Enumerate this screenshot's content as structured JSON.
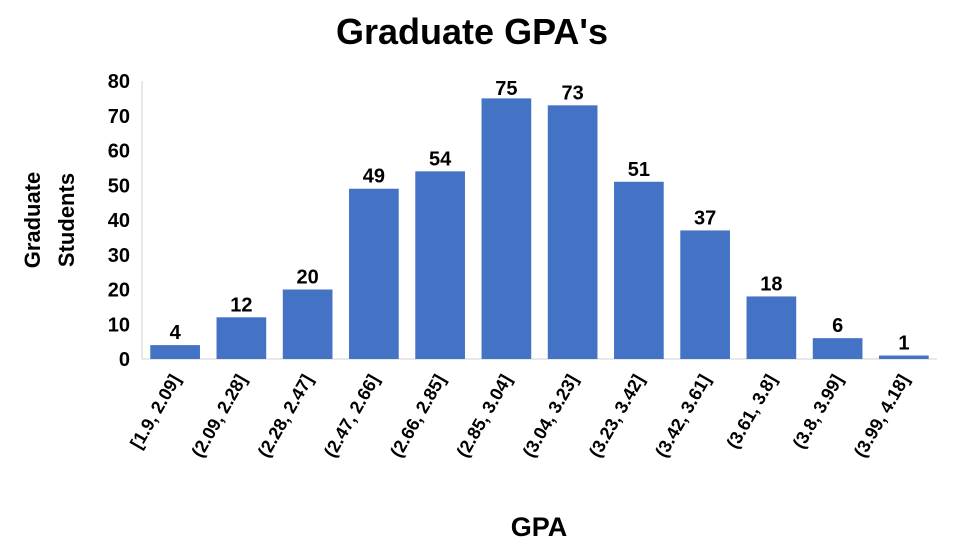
{
  "chart_data": {
    "type": "bar",
    "title": "Graduate GPA's",
    "xlabel": "GPA",
    "ylabel_lines": [
      "Graduate",
      "Students"
    ],
    "categories": [
      "[1.9, 2.09]",
      "(2.09, 2.28]",
      "(2.28, 2.47]",
      "(2.47, 2.66]",
      "(2.66, 2.85]",
      "(2.85, 3.04]",
      "(3.04, 3.23]",
      "(3.23, 3.42]",
      "(3.42, 3.61]",
      "(3.61, 3.8]",
      "(3.8, 3.99]",
      "(3.99, 4.18]"
    ],
    "values": [
      4,
      12,
      20,
      49,
      54,
      75,
      73,
      51,
      37,
      18,
      6,
      1
    ],
    "ylim": [
      0,
      80
    ],
    "yticks": [
      0,
      10,
      20,
      30,
      40,
      50,
      60,
      70,
      80
    ],
    "bar_color": "#4472C4",
    "grid": false,
    "data_labels": true
  }
}
